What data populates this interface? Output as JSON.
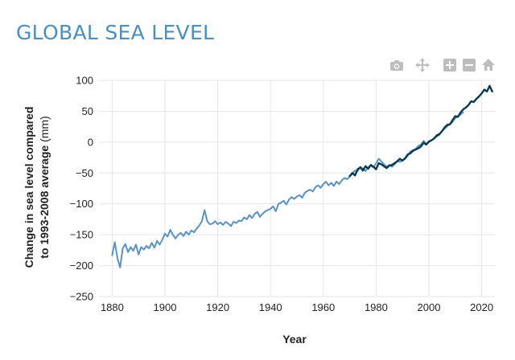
{
  "page": {
    "title": "GLOBAL SEA LEVEL"
  },
  "colors": {
    "title": "#4a8fc0",
    "grid": "#e6e6e6",
    "historical": "#5b93c0",
    "satellite": "#0b3a4e",
    "toolbar_icon": "#bdbdbd"
  },
  "toolbar": {
    "icons": [
      "camera-icon",
      "pan-icon",
      "zoom-in-icon",
      "zoom-out-icon",
      "home-icon"
    ]
  },
  "chart_data": {
    "type": "line",
    "xlabel": "Year",
    "ylabel_bold": "Change in sea level compared to 1993-2008 average",
    "ylabel_unit": "(mm)",
    "xlim": [
      1875,
      2025
    ],
    "ylim": [
      -250,
      100
    ],
    "x_ticks": [
      1880,
      1900,
      1920,
      1940,
      1960,
      1980,
      2000,
      2020
    ],
    "y_ticks": [
      100,
      50,
      0,
      -50,
      -100,
      -150,
      -200,
      -250
    ],
    "grid": true,
    "series": [
      {
        "name": "",
        "color": "#5b93c0",
        "x": [
          1880,
          1881,
          1882,
          1883,
          1884,
          1885,
          1886,
          1887,
          1888,
          1889,
          1890,
          1891,
          1892,
          1893,
          1894,
          1895,
          1896,
          1897,
          1898,
          1899,
          1900,
          1901,
          1902,
          1903,
          1904,
          1905,
          1906,
          1907,
          1908,
          1909,
          1910,
          1911,
          1912,
          1913,
          1914,
          1915,
          1916,
          1917,
          1918,
          1919,
          1920,
          1921,
          1922,
          1923,
          1924,
          1925,
          1926,
          1927,
          1928,
          1929,
          1930,
          1931,
          1932,
          1933,
          1934,
          1935,
          1936,
          1937,
          1938,
          1939,
          1940,
          1941,
          1942,
          1943,
          1944,
          1945,
          1946,
          1947,
          1948,
          1949,
          1950,
          1951,
          1952,
          1953,
          1954,
          1955,
          1956,
          1957,
          1958,
          1959,
          1960,
          1961,
          1962,
          1963,
          1964,
          1965,
          1966,
          1967,
          1968,
          1969,
          1970,
          1971,
          1972,
          1973,
          1974,
          1975,
          1976,
          1977,
          1978,
          1979,
          1980,
          1981,
          1982,
          1983,
          1984,
          1985,
          1986,
          1987,
          1988,
          1989,
          1990,
          1991,
          1992,
          1993,
          1994,
          1995,
          1996,
          1997,
          1998,
          1999,
          2000,
          2001,
          2002,
          2003,
          2004,
          2005,
          2006,
          2007,
          2008,
          2009,
          2010,
          2011,
          2012,
          2013
        ],
        "y": [
          -183,
          -162,
          -188,
          -203,
          -172,
          -165,
          -178,
          -170,
          -176,
          -166,
          -182,
          -170,
          -174,
          -168,
          -172,
          -163,
          -171,
          -160,
          -166,
          -158,
          -148,
          -153,
          -142,
          -150,
          -156,
          -150,
          -147,
          -152,
          -145,
          -150,
          -143,
          -146,
          -140,
          -135,
          -128,
          -110,
          -128,
          -133,
          -132,
          -128,
          -133,
          -130,
          -134,
          -129,
          -132,
          -136,
          -129,
          -131,
          -127,
          -128,
          -122,
          -125,
          -118,
          -123,
          -116,
          -113,
          -121,
          -116,
          -112,
          -110,
          -108,
          -104,
          -112,
          -100,
          -98,
          -95,
          -101,
          -93,
          -89,
          -92,
          -88,
          -86,
          -90,
          -82,
          -79,
          -77,
          -80,
          -73,
          -70,
          -74,
          -68,
          -64,
          -70,
          -66,
          -71,
          -64,
          -68,
          -62,
          -58,
          -60,
          -56,
          -51,
          -46,
          -47,
          -40,
          -43,
          -47,
          -41,
          -38,
          -41,
          -34,
          -27,
          -31,
          -36,
          -40,
          -37,
          -40,
          -36,
          -31,
          -32,
          -29,
          -27,
          -22,
          -15,
          -13,
          -11,
          -6,
          -4,
          2,
          -3,
          0,
          3,
          6,
          9,
          12,
          18,
          22,
          26,
          29,
          33,
          39,
          41,
          45,
          48
        ]
      },
      {
        "name": "",
        "color": "#0b3a4e",
        "x": [
          1970,
          1971,
          1972,
          1973,
          1974,
          1975,
          1976,
          1977,
          1978,
          1979,
          1980,
          1981,
          1982,
          1983,
          1984,
          1985,
          1986,
          1987,
          1988,
          1989,
          1990,
          1991,
          1992,
          1993,
          1994,
          1995,
          1996,
          1997,
          1998,
          1999,
          2000,
          2001,
          2002,
          2003,
          2004,
          2005,
          2006,
          2007,
          2008,
          2009,
          2010,
          2011,
          2012,
          2013,
          2014,
          2015,
          2016,
          2017,
          2018,
          2019,
          2020,
          2021,
          2022,
          2023,
          2024
        ],
        "y": [
          -55,
          -50,
          -54,
          -44,
          -41,
          -46,
          -39,
          -43,
          -37,
          -40,
          -44,
          -34,
          -36,
          -39,
          -42,
          -38,
          -37,
          -34,
          -31,
          -27,
          -30,
          -26,
          -20,
          -18,
          -14,
          -12,
          -10,
          -7,
          -1,
          -4,
          1,
          3,
          6,
          11,
          13,
          18,
          24,
          28,
          29,
          36,
          42,
          41,
          48,
          53,
          56,
          60,
          66,
          65,
          70,
          74,
          79,
          85,
          82,
          91,
          82
        ]
      }
    ]
  }
}
